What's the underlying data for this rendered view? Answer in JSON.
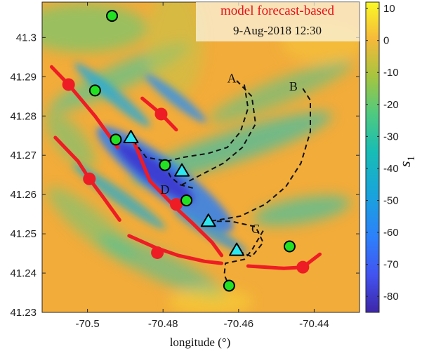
{
  "chart_data": {
    "type": "heatmap",
    "title": "model forecast-based",
    "subtitle": "9-Aug-2018 12:30",
    "title_color": "#e8101a",
    "xlabel": "longitude (°)",
    "ylabel": "",
    "xlim": [
      -70.512,
      -70.428
    ],
    "ylim": [
      41.23,
      41.309
    ],
    "xticks": [
      -70.5,
      -70.48,
      -70.46,
      -70.44
    ],
    "xtick_labels": [
      "-70.5",
      "-70.48",
      "-70.46",
      "-70.44"
    ],
    "yticks": [
      41.23,
      41.24,
      41.25,
      41.26,
      41.27,
      41.28,
      41.29,
      41.3
    ],
    "ytick_labels": [
      "41.23",
      "41.24",
      "41.25",
      "41.26",
      "41.27",
      "41.28",
      "41.29",
      "41.3"
    ],
    "colorbar": {
      "label": "s",
      "label_subscript": "1",
      "range": [
        -85,
        12
      ],
      "ticks": [
        10,
        0,
        -10,
        -20,
        -30,
        -40,
        -50,
        -60,
        -70,
        -80
      ],
      "tick_labels": [
        "10",
        "0",
        "-10",
        "-20",
        "-30",
        "-40",
        "-50",
        "-60",
        "-70",
        "-80"
      ],
      "colormap": "parula"
    },
    "ridges": [
      [
        [
          -70.5095,
          41.2925
        ],
        [
          -70.505,
          41.288
        ],
        [
          -70.498,
          41.28
        ],
        [
          -70.492,
          41.272
        ]
      ],
      [
        [
          -70.5085,
          41.2745
        ],
        [
          -70.5025,
          41.2685
        ],
        [
          -70.4995,
          41.264
        ],
        [
          -70.496,
          41.2595
        ],
        [
          -70.4915,
          41.2535
        ]
      ],
      [
        [
          -70.489,
          41.2495
        ],
        [
          -70.482,
          41.2465
        ],
        [
          -70.476,
          41.2445
        ],
        [
          -70.469,
          41.243
        ],
        [
          -70.4645,
          41.2425
        ]
      ],
      [
        [
          -70.4855,
          41.2845
        ],
        [
          -70.4805,
          41.2805
        ],
        [
          -70.4765,
          41.2765
        ]
      ],
      [
        [
          -70.4875,
          41.273
        ],
        [
          -70.4835,
          41.2635
        ],
        [
          -70.4795,
          41.2595
        ],
        [
          -70.4765,
          41.2565
        ],
        [
          -70.4725,
          41.253
        ],
        [
          -70.467,
          41.2478
        ],
        [
          -70.4645,
          41.2445
        ]
      ],
      [
        [
          -70.4575,
          41.2418
        ],
        [
          -70.448,
          41.2412
        ],
        [
          -70.443,
          41.2415
        ],
        [
          -70.4385,
          41.2448
        ]
      ]
    ],
    "ridge_markers": [
      [
        -70.505,
        41.288
      ],
      [
        -70.4995,
        41.264
      ],
      [
        -70.4805,
        41.2805
      ],
      [
        -70.4765,
        41.2575
      ],
      [
        -70.4815,
        41.2452
      ],
      [
        -70.443,
        41.2415
      ]
    ],
    "drifters_green": [
      [
        -70.4935,
        41.3055
      ],
      [
        -70.498,
        41.2865
      ],
      [
        -70.4925,
        41.274
      ],
      [
        -70.4795,
        41.2675
      ],
      [
        -70.4738,
        41.2585
      ],
      [
        -70.4465,
        41.2468
      ],
      [
        -70.4625,
        41.2368
      ]
    ],
    "drifters_cyan": [
      [
        -70.4885,
        41.2745
      ],
      [
        -70.475,
        41.266
      ],
      [
        -70.468,
        41.2532
      ],
      [
        -70.4605,
        41.2458
      ]
    ],
    "trajectories": [
      {
        "label": "A",
        "points": [
          [
            -70.4605,
            41.289
          ],
          [
            -70.4565,
            41.285
          ],
          [
            -70.4555,
            41.278
          ],
          [
            -70.459,
            41.272
          ],
          [
            -70.464,
            41.268
          ],
          [
            -70.47,
            41.265
          ],
          [
            -70.475,
            41.2625
          ]
        ]
      },
      {
        "label": "A",
        "points": [
          [
            -70.4585,
            41.288
          ],
          [
            -70.4575,
            41.282
          ],
          [
            -70.4595,
            41.276
          ],
          [
            -70.463,
            41.272
          ],
          [
            -70.468,
            41.2705
          ],
          [
            -70.4745,
            41.2695
          ],
          [
            -70.479,
            41.2685
          ],
          [
            -70.4845,
            41.2695
          ],
          [
            -70.4885,
            41.2745
          ]
        ]
      },
      {
        "label": "B",
        "points": [
          [
            -70.443,
            41.287
          ],
          [
            -70.441,
            41.284
          ],
          [
            -70.441,
            41.276
          ],
          [
            -70.4435,
            41.268
          ],
          [
            -70.4475,
            41.262
          ],
          [
            -70.453,
            41.2575
          ],
          [
            -70.4595,
            41.2545
          ],
          [
            -70.4655,
            41.2535
          ],
          [
            -70.468,
            41.2532
          ]
        ]
      },
      {
        "label": "C",
        "points": [
          [
            -70.468,
            41.2532
          ],
          [
            -70.462,
            41.2532
          ],
          [
            -70.4555,
            41.2518
          ],
          [
            -70.4535,
            41.2478
          ],
          [
            -70.4565,
            41.2442
          ],
          [
            -70.4605,
            41.2458
          ]
        ]
      },
      {
        "label": "C",
        "points": [
          [
            -70.4535,
            41.2508
          ],
          [
            -70.4565,
            41.2458
          ],
          [
            -70.4585,
            41.2435
          ],
          [
            -70.4635,
            41.2425
          ],
          [
            -70.4638,
            41.2395
          ],
          [
            -70.4625,
            41.2368
          ]
        ]
      },
      {
        "label": "D",
        "points": [
          [
            -70.4795,
            41.2675
          ],
          [
            -70.478,
            41.2645
          ],
          [
            -70.4755,
            41.2625
          ],
          [
            -70.4715,
            41.2615
          ]
        ]
      }
    ],
    "trajectory_labels": [
      {
        "text": "A",
        "x": -70.4618,
        "y": 41.2885
      },
      {
        "text": "B",
        "x": -70.4455,
        "y": 41.2865
      },
      {
        "text": "C",
        "x": -70.4555,
        "y": 41.2502
      },
      {
        "text": "D",
        "x": -70.4795,
        "y": 41.2602
      }
    ],
    "colors": {
      "ridge": "#ee1c24",
      "green": "#22e022",
      "cyan": "#2ee6f0",
      "trajectory": "#111111"
    }
  }
}
